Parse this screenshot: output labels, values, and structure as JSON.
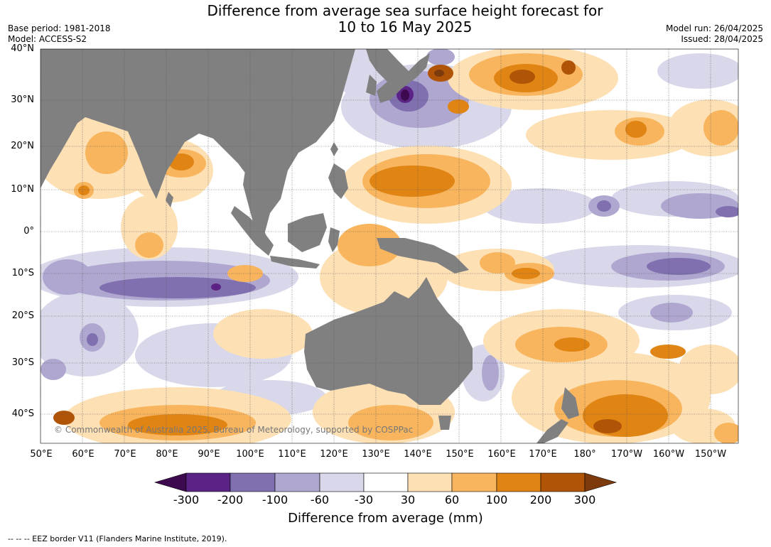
{
  "title_line1": "Difference from average sea surface height forecast for",
  "title_line2": "10 to 16 May 2025",
  "meta_left": [
    "Base period: 1981-2018",
    "Model: ACCESS-S2"
  ],
  "meta_right": [
    "Model run: 26/04/2025",
    "Issued: 28/04/2025"
  ],
  "lat_labels": [
    "40°N",
    "30°N",
    "20°N",
    "10°N",
    "0°",
    "10°S",
    "20°S",
    "30°S",
    "40°S"
  ],
  "lon_labels": [
    "50°E",
    "60°E",
    "70°E",
    "80°E",
    "90°E",
    "100°E",
    "110°E",
    "120°E",
    "130°E",
    "140°E",
    "150°E",
    "160°E",
    "170°E",
    "180°",
    "170°W",
    "160°W",
    "150°W"
  ],
  "copyright": "© Commonwealth of Australia 2025, Bureau of Meteorology, supported by COSPPac",
  "colorbar": {
    "ticks": [
      "-300",
      "-200",
      "-100",
      "-60",
      "-30",
      "30",
      "60",
      "100",
      "200",
      "300"
    ],
    "colors": [
      "#3d0a4f",
      "#5b2385",
      "#8070b0",
      "#afa7d0",
      "#d8d8ea",
      "#ffffff",
      "#fde0b4",
      "#f8b55e",
      "#e08414",
      "#b05508",
      "#7d3a0c"
    ],
    "title": "Difference from average (mm)"
  },
  "palette": {
    "ocean": "#ffffff",
    "land": "#808080",
    "grid": "#555555"
  },
  "footer": "--  --  -- EEZ border V11 (Flanders Marine Institute, 2019)."
}
